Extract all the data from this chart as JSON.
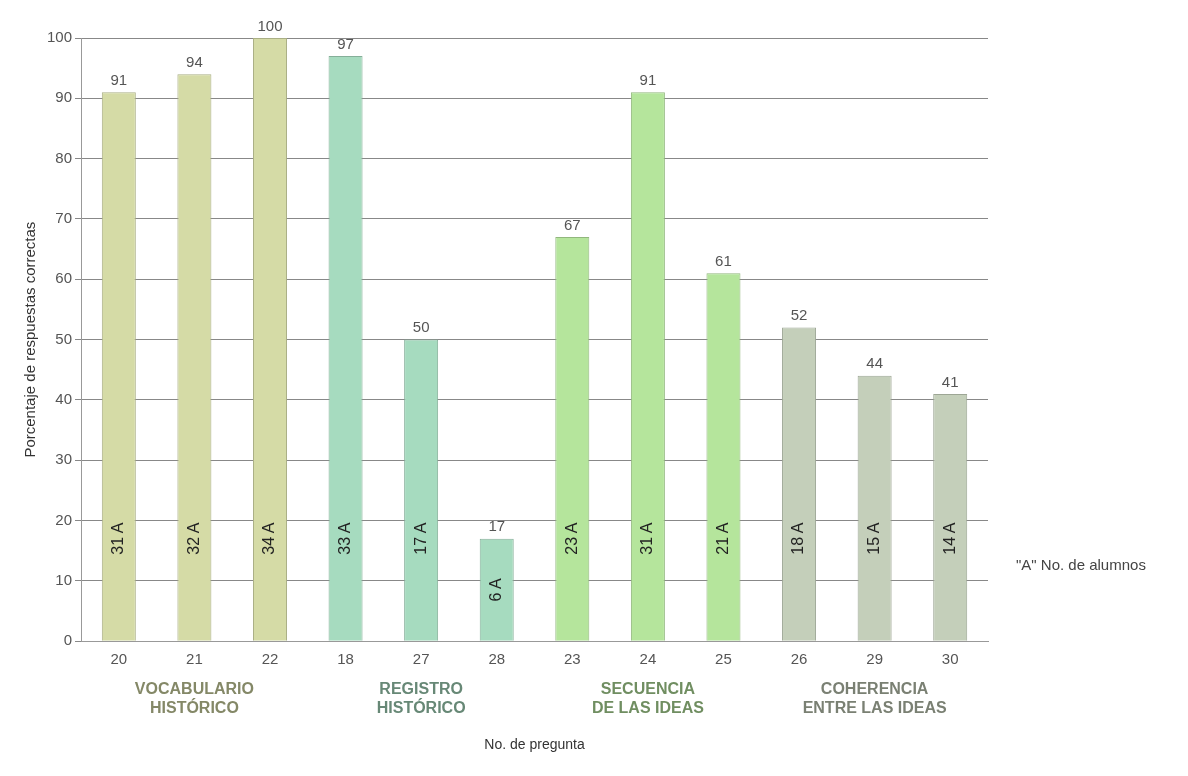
{
  "chart_data": {
    "type": "bar",
    "xlabel": "No. de pregunta",
    "ylabel": "Porcentaje de respuestas correctas",
    "categories": [
      "20",
      "21",
      "22",
      "18",
      "27",
      "28",
      "23",
      "24",
      "25",
      "26",
      "29",
      "30"
    ],
    "values": [
      91,
      94,
      100,
      97,
      50,
      17,
      67,
      91,
      61,
      52,
      44,
      41
    ],
    "colors": [
      "#d5dba6",
      "#d5dba6",
      "#d5dba6",
      "#a6dbbf",
      "#a6dbbf",
      "#a6dbbf",
      "#b5e59c",
      "#b5e59c",
      "#b5e59c",
      "#c4cfba",
      "#c4cfba",
      "#c4cfba"
    ],
    "ylim": [
      0,
      100
    ],
    "yticks": [
      0,
      10,
      20,
      30,
      40,
      50,
      60,
      70,
      80,
      90,
      100
    ],
    "grid": "y",
    "data_labels": true,
    "legend": false,
    "annotations": [
      "31 A",
      "32 A",
      "34 A",
      "33 A",
      "17 A",
      "6 A",
      "23 A",
      "31 A",
      "21 A",
      "18 A",
      "15 A",
      "14 A",
      "VOCABULARIO\nHISTÓRICO",
      "REGISTRO\nHISTÓRICO",
      "SECUENCIA\nDE LAS IDEAS",
      "COHERENCIA\nENTRE LAS IDEAS",
      "\"A\" No. de alumnos"
    ]
  }
}
